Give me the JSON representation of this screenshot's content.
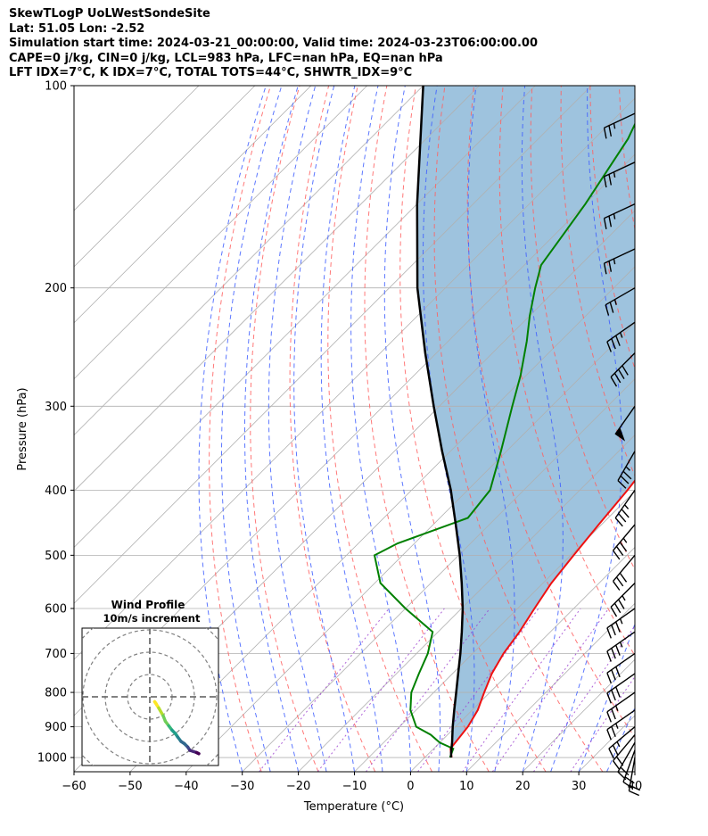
{
  "header": {
    "title": "SkewTLogP UoLWestSondeSite",
    "location": "Lat: 51.05   Lon: -2.52",
    "times": "Simulation start time: 2024-03-21_00:00:00, Valid time: 2024-03-23T06:00:00.00",
    "params": "CAPE=0 j/kg, CIN=0 j/kg, LCL=983 hPa, LFC=nan hPa, EQ=nan hPa",
    "indices": "LFT IDX=7°C, K IDX=7°C, TOTAL TOTS=44°C, SHWTR_IDX=9°C"
  },
  "chart_data": {
    "type": "skewt",
    "xlabel": "Temperature (°C)",
    "ylabel": "Pressure (hPa)",
    "xlim": [
      -60,
      40
    ],
    "ylim": [
      1050,
      100
    ],
    "x_ticks": [
      -60,
      -50,
      -40,
      -30,
      -20,
      -10,
      0,
      10,
      20,
      30,
      40
    ],
    "y_ticks": [
      100,
      200,
      300,
      400,
      500,
      600,
      700,
      800,
      900,
      1000
    ],
    "grid": true,
    "skew_deg": 45,
    "colors": {
      "temperature": "#ee1111",
      "dewpoint": "#008000",
      "parcel": "#000000",
      "fill": "#9ec3de",
      "dry_adiabats": "#ff6060",
      "moist_adiabats": "#3f5fff",
      "mixing_ratio": "#9b3fcf",
      "isotherms": "#b0b0b0"
    },
    "temperature": [
      {
        "p": 1000,
        "t": 4.8
      },
      {
        "p": 970,
        "t": 3.0
      },
      {
        "p": 925,
        "t": 2.5
      },
      {
        "p": 900,
        "t": 2.2
      },
      {
        "p": 850,
        "t": 1.0
      },
      {
        "p": 800,
        "t": -1.0
      },
      {
        "p": 750,
        "t": -3.0
      },
      {
        "p": 700,
        "t": -4.5
      },
      {
        "p": 650,
        "t": -5.5
      },
      {
        "p": 600,
        "t": -7.0
      },
      {
        "p": 550,
        "t": -8.5
      },
      {
        "p": 500,
        "t": -9.5
      },
      {
        "p": 450,
        "t": -10.5
      },
      {
        "p": 400,
        "t": -11.5
      },
      {
        "p": 350,
        "t": -13.0
      },
      {
        "p": 320,
        "t": -13.5
      },
      {
        "p": 300,
        "t": -14.0
      },
      {
        "p": 270,
        "t": -15.0
      },
      {
        "p": 250,
        "t": -16.0
      },
      {
        "p": 220,
        "t": -18.5
      },
      {
        "p": 200,
        "t": -20.5
      },
      {
        "p": 180,
        "t": -23.0
      },
      {
        "p": 170,
        "t": -25.0
      },
      {
        "p": 160,
        "t": -28.5
      },
      {
        "p": 150,
        "t": -32.0
      },
      {
        "p": 140,
        "t": -36.0
      },
      {
        "p": 130,
        "t": -39.0
      },
      {
        "p": 120,
        "t": -43.5
      },
      {
        "p": 110,
        "t": -47.5
      },
      {
        "p": 100,
        "t": -53.0
      }
    ],
    "dewpoint": [
      {
        "p": 1000,
        "t": 4.5
      },
      {
        "p": 970,
        "t": 3.5
      },
      {
        "p": 950,
        "t": 0.0
      },
      {
        "p": 925,
        "t": -3.0
      },
      {
        "p": 900,
        "t": -7.0
      },
      {
        "p": 850,
        "t": -11.0
      },
      {
        "p": 800,
        "t": -14.0
      },
      {
        "p": 750,
        "t": -16.0
      },
      {
        "p": 700,
        "t": -18.0
      },
      {
        "p": 650,
        "t": -21.0
      },
      {
        "p": 600,
        "t": -30.0
      },
      {
        "p": 550,
        "t": -39.0
      },
      {
        "p": 500,
        "t": -45.0
      },
      {
        "p": 480,
        "t": -43.0
      },
      {
        "p": 440,
        "t": -35.0
      },
      {
        "p": 400,
        "t": -36.0
      },
      {
        "p": 350,
        "t": -41.0
      },
      {
        "p": 300,
        "t": -47.0
      },
      {
        "p": 270,
        "t": -51.0
      },
      {
        "p": 240,
        "t": -56.0
      },
      {
        "p": 220,
        "t": -60.0
      },
      {
        "p": 200,
        "t": -64.0
      },
      {
        "p": 185,
        "t": -67.0
      },
      {
        "p": 150,
        "t": -70.0
      },
      {
        "p": 120,
        "t": -74.0
      },
      {
        "p": 100,
        "t": -79.0
      }
    ],
    "parcel": [
      {
        "p": 1000,
        "t": 4.7
      },
      {
        "p": 983,
        "t": 3.8
      },
      {
        "p": 950,
        "t": 2.2
      },
      {
        "p": 900,
        "t": -0.5
      },
      {
        "p": 850,
        "t": -3.2
      },
      {
        "p": 800,
        "t": -6.0
      },
      {
        "p": 750,
        "t": -9.0
      },
      {
        "p": 700,
        "t": -12.2
      },
      {
        "p": 650,
        "t": -15.8
      },
      {
        "p": 600,
        "t": -19.8
      },
      {
        "p": 550,
        "t": -24.5
      },
      {
        "p": 500,
        "t": -29.8
      },
      {
        "p": 450,
        "t": -36.0
      },
      {
        "p": 400,
        "t": -43.0
      },
      {
        "p": 350,
        "t": -51.5
      },
      {
        "p": 300,
        "t": -61.0
      },
      {
        "p": 250,
        "t": -72.0
      },
      {
        "p": 200,
        "t": -85.0
      },
      {
        "p": 150,
        "t": -100.0
      },
      {
        "p": 100,
        "t": -120.0
      }
    ],
    "winds": [
      {
        "p": 1000,
        "spd_kt": 20,
        "dir_deg": 190
      },
      {
        "p": 975,
        "spd_kt": 20,
        "dir_deg": 200
      },
      {
        "p": 950,
        "spd_kt": 20,
        "dir_deg": 210
      },
      {
        "p": 925,
        "spd_kt": 20,
        "dir_deg": 220
      },
      {
        "p": 900,
        "spd_kt": 25,
        "dir_deg": 230
      },
      {
        "p": 850,
        "spd_kt": 25,
        "dir_deg": 235
      },
      {
        "p": 800,
        "spd_kt": 25,
        "dir_deg": 235
      },
      {
        "p": 750,
        "spd_kt": 30,
        "dir_deg": 235
      },
      {
        "p": 700,
        "spd_kt": 30,
        "dir_deg": 235
      },
      {
        "p": 650,
        "spd_kt": 35,
        "dir_deg": 235
      },
      {
        "p": 600,
        "spd_kt": 35,
        "dir_deg": 235
      },
      {
        "p": 550,
        "spd_kt": 35,
        "dir_deg": 225
      },
      {
        "p": 500,
        "spd_kt": 30,
        "dir_deg": 220
      },
      {
        "p": 450,
        "spd_kt": 35,
        "dir_deg": 220
      },
      {
        "p": 400,
        "spd_kt": 35,
        "dir_deg": 215
      },
      {
        "p": 350,
        "spd_kt": 35,
        "dir_deg": 210
      },
      {
        "p": 300,
        "spd_kt": 50,
        "dir_deg": 215
      },
      {
        "p": 250,
        "spd_kt": 40,
        "dir_deg": 225
      },
      {
        "p": 225,
        "spd_kt": 35,
        "dir_deg": 235
      },
      {
        "p": 200,
        "spd_kt": 25,
        "dir_deg": 240
      },
      {
        "p": 175,
        "spd_kt": 25,
        "dir_deg": 245
      },
      {
        "p": 150,
        "spd_kt": 25,
        "dir_deg": 245
      },
      {
        "p": 130,
        "spd_kt": 25,
        "dir_deg": 245
      },
      {
        "p": 110,
        "spd_kt": 25,
        "dir_deg": 245
      }
    ],
    "hodograph": {
      "title": "Wind Profile",
      "subtitle": "10m/s increment",
      "ring_increment_ms": 10,
      "colormap": "viridis",
      "points": [
        {
          "u": 2.8,
          "v": 3.0
        },
        {
          "u": 2.2,
          "v": 2.2
        },
        {
          "u": 4.0,
          "v": 5.0
        },
        {
          "u": 6.0,
          "v": 8.5
        },
        {
          "u": 7.0,
          "v": 11.0
        },
        {
          "u": 8.5,
          "v": 13.0
        },
        {
          "u": 10.0,
          "v": 15.0
        },
        {
          "u": 11.5,
          "v": 16.5
        },
        {
          "u": 12.5,
          "v": 18.0
        },
        {
          "u": 14.0,
          "v": 20.0
        },
        {
          "u": 15.5,
          "v": 21.0
        },
        {
          "u": 17.0,
          "v": 22.5
        },
        {
          "u": 18.0,
          "v": 24.0
        },
        {
          "u": 19.5,
          "v": 24.5
        },
        {
          "u": 21.0,
          "v": 25.0
        },
        {
          "u": 22.0,
          "v": 25.5
        }
      ]
    }
  }
}
